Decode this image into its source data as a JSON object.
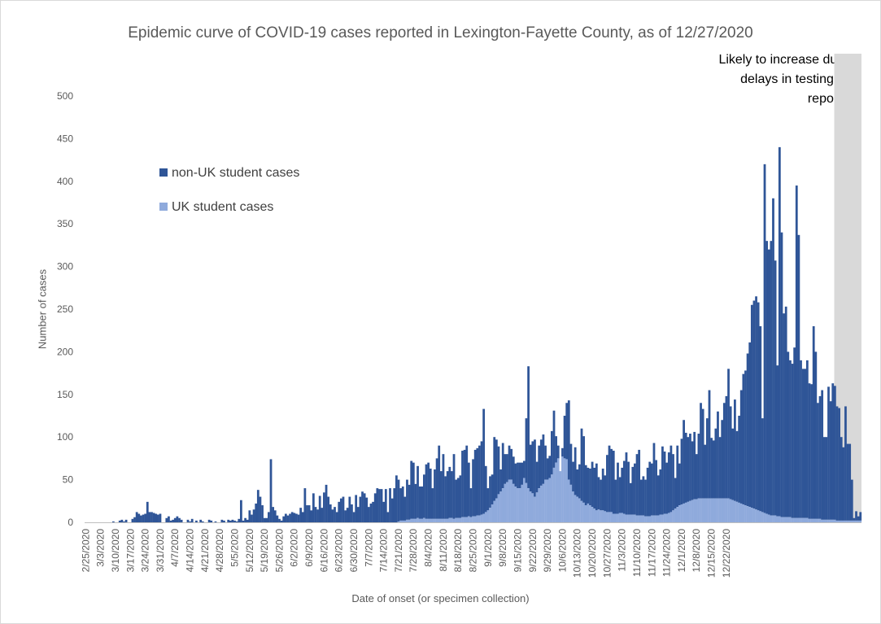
{
  "chart_data": {
    "type": "bar",
    "stacked": true,
    "title": "Epidemic curve of COVID-19 cases reported in Lexington-Fayette County, as of 12/27/2020",
    "xlabel": "Date of onset (or specimen collection)",
    "ylabel": "Number of cases",
    "ylim": [
      0,
      500
    ],
    "yticks": [
      0,
      50,
      100,
      150,
      200,
      250,
      300,
      350,
      400,
      450,
      500
    ],
    "x_tick_labels": [
      "2/25/2020",
      "3/3/2020",
      "3/10/2020",
      "3/17/2020",
      "3/24/2020",
      "3/31/2020",
      "4/7/2020",
      "4/14/2020",
      "4/21/2020",
      "4/28/2020",
      "5/5/2020",
      "5/12/2020",
      "5/19/2020",
      "5/26/2020",
      "6/2/2020",
      "6/9/2020",
      "6/16/2020",
      "6/23/2020",
      "6/30/2020",
      "7/7/2020",
      "7/14/2020",
      "7/21/2020",
      "7/28/2020",
      "8/4/2020",
      "8/11/2020",
      "8/18/2020",
      "8/25/2020",
      "9/1/2020",
      "9/8/2020",
      "9/15/2020",
      "9/22/2020",
      "9/29/2020",
      "10/6/2020",
      "10/13/2020",
      "10/20/2020",
      "10/27/2020",
      "11/3/2020",
      "11/10/2020",
      "11/17/2020",
      "11/24/2020",
      "12/1/2020",
      "12/8/2020",
      "12/15/2020",
      "12/22/2020"
    ],
    "legend": {
      "position": "left-upper",
      "entries": [
        "non-UK student cases",
        "UK student cases"
      ]
    },
    "grid": false,
    "series": [
      {
        "name": "non-UK student cases",
        "color": "#2f5597",
        "total_values": [
          0,
          0,
          0,
          0,
          0,
          0,
          0,
          0,
          0,
          0,
          0,
          0,
          0,
          1,
          0,
          0,
          2,
          3,
          1,
          3,
          0,
          0,
          4,
          6,
          12,
          10,
          8,
          9,
          10,
          24,
          12,
          12,
          11,
          10,
          9,
          10,
          0,
          0,
          5,
          7,
          2,
          3,
          5,
          7,
          5,
          3,
          0,
          0,
          3,
          1,
          4,
          0,
          2,
          0,
          3,
          1,
          0,
          0,
          3,
          2,
          0,
          1,
          0,
          0,
          3,
          2,
          0,
          3,
          2,
          3,
          2,
          1,
          4,
          26,
          2,
          5,
          3,
          14,
          9,
          15,
          22,
          38,
          30,
          20,
          5,
          5,
          12,
          74,
          18,
          14,
          8,
          4,
          2,
          7,
          10,
          8,
          10,
          12,
          11,
          10,
          9,
          17,
          12,
          40,
          20,
          20,
          14,
          34,
          18,
          15,
          31,
          17,
          35,
          44,
          30,
          21,
          15,
          18,
          12,
          24,
          28,
          30,
          14,
          17,
          30,
          21,
          12,
          32,
          18,
          30,
          36,
          34,
          29,
          18,
          22,
          24,
          34,
          40,
          39,
          39,
          24,
          39,
          12,
          40,
          28,
          40,
          55,
          50,
          40,
          42,
          30,
          50,
          44,
          72,
          70,
          45,
          66,
          42,
          42,
          56,
          68,
          70,
          63,
          40,
          62,
          75,
          90,
          60,
          80,
          54,
          60,
          65,
          60,
          80,
          50,
          52,
          55,
          84,
          85,
          90,
          70,
          40,
          74,
          85,
          87,
          90,
          95,
          133,
          66,
          40,
          54,
          56,
          100,
          97,
          89,
          62,
          93,
          80,
          80,
          90,
          86,
          77,
          69,
          70,
          70,
          70,
          72,
          122,
          183,
          91,
          95,
          97,
          71,
          90,
          97,
          103,
          90,
          75,
          78,
          107,
          131,
          101,
          90,
          60,
          87,
          125,
          140,
          143,
          92,
          71,
          88,
          62,
          68,
          110,
          101,
          67,
          64,
          63,
          71,
          64,
          69,
          53,
          50,
          63,
          55,
          79,
          90,
          86,
          84,
          50,
          70,
          53,
          64,
          72,
          82,
          71,
          46,
          65,
          69,
          80,
          85,
          50,
          54,
          50,
          64,
          71,
          69,
          93,
          73,
          55,
          62,
          89,
          83,
          70,
          82,
          90,
          80,
          52,
          90,
          69,
          98,
          120,
          105,
          100,
          104,
          95,
          106,
          80,
          104,
          140,
          133,
          91,
          122,
          155,
          99,
          96,
          110,
          130,
          100,
          120,
          140,
          148,
          180,
          136,
          110,
          144,
          107,
          125,
          155,
          174,
          178,
          198,
          211,
          255,
          260,
          265,
          258,
          230,
          122,
          420,
          330,
          320,
          330,
          380,
          307,
          184,
          440,
          340,
          245,
          253,
          200,
          190,
          186,
          205,
          395,
          337,
          190,
          180,
          180,
          190,
          163,
          162,
          230,
          200,
          140,
          148,
          155,
          100,
          100,
          159,
          142,
          163,
          160,
          136,
          134,
          100,
          88,
          136,
          92,
          92,
          50,
          5,
          13,
          7,
          12
        ]
      },
      {
        "name": "UK student cases",
        "color": "#8faadc",
        "values": [
          0,
          0,
          0,
          0,
          0,
          0,
          0,
          0,
          0,
          0,
          0,
          0,
          0,
          0,
          0,
          0,
          0,
          0,
          0,
          0,
          0,
          0,
          0,
          0,
          0,
          0,
          0,
          0,
          0,
          0,
          0,
          0,
          0,
          0,
          0,
          0,
          0,
          0,
          0,
          0,
          0,
          0,
          0,
          0,
          0,
          0,
          0,
          0,
          0,
          0,
          0,
          0,
          0,
          0,
          0,
          0,
          0,
          0,
          0,
          0,
          0,
          0,
          0,
          0,
          0,
          0,
          0,
          0,
          0,
          0,
          0,
          0,
          0,
          0,
          0,
          0,
          0,
          0,
          0,
          0,
          0,
          0,
          0,
          0,
          0,
          0,
          0,
          0,
          0,
          0,
          0,
          0,
          0,
          0,
          0,
          0,
          0,
          0,
          0,
          0,
          0,
          0,
          0,
          0,
          0,
          0,
          0,
          0,
          0,
          0,
          0,
          0,
          0,
          0,
          0,
          0,
          0,
          0,
          0,
          0,
          0,
          0,
          0,
          0,
          0,
          0,
          0,
          0,
          0,
          0,
          0,
          0,
          0,
          0,
          0,
          0,
          0,
          0,
          0,
          0,
          0,
          0,
          0,
          0,
          0,
          0,
          0,
          1,
          2,
          2,
          2,
          3,
          3,
          4,
          4,
          4,
          5,
          4,
          4,
          5,
          4,
          4,
          4,
          4,
          4,
          4,
          4,
          4,
          4,
          4,
          4,
          5,
          5,
          4,
          5,
          5,
          5,
          6,
          6,
          6,
          7,
          6,
          7,
          7,
          8,
          8,
          9,
          10,
          12,
          14,
          17,
          21,
          25,
          28,
          33,
          36,
          40,
          45,
          47,
          50,
          50,
          45,
          42,
          40,
          40,
          44,
          52,
          46,
          40,
          36,
          34,
          30,
          35,
          40,
          43,
          45,
          50,
          50,
          52,
          56,
          64,
          70,
          75,
          78,
          77,
          75,
          74,
          50,
          44,
          36,
          32,
          30,
          28,
          25,
          23,
          20,
          22,
          20,
          18,
          16,
          14,
          15,
          14,
          14,
          13,
          12,
          12,
          12,
          10,
          10,
          10,
          11,
          11,
          10,
          9,
          9,
          9,
          9,
          9,
          8,
          8,
          8,
          8,
          7,
          7,
          7,
          8,
          8,
          8,
          8,
          9,
          9,
          10,
          10,
          11,
          12,
          14,
          16,
          18,
          20,
          21,
          22,
          23,
          24,
          25,
          26,
          27,
          27,
          28,
          28,
          28,
          28,
          28,
          28,
          28,
          28,
          28,
          28,
          28,
          28,
          28,
          28,
          28,
          27,
          26,
          25,
          24,
          23,
          22,
          21,
          20,
          19,
          18,
          17,
          16,
          15,
          14,
          13,
          12,
          11,
          10,
          9,
          8,
          8,
          8,
          7,
          7,
          6,
          6,
          6,
          6,
          6,
          5,
          5,
          5,
          5,
          5,
          5,
          5,
          5,
          4,
          4,
          4,
          4,
          4,
          4,
          3,
          3,
          3,
          3,
          3,
          3,
          3,
          2,
          2,
          2,
          2,
          2,
          2,
          2,
          2,
          2,
          2,
          2,
          2,
          2,
          2,
          2,
          2,
          2,
          1,
          1,
          1,
          1,
          1,
          1,
          1
        ]
      }
    ],
    "annotation": {
      "text_lines": [
        "Likely to increase due to",
        "delays in testing and",
        "reporting"
      ],
      "shaded_last_days": 4,
      "shade_color": "#d9d9d9"
    }
  }
}
